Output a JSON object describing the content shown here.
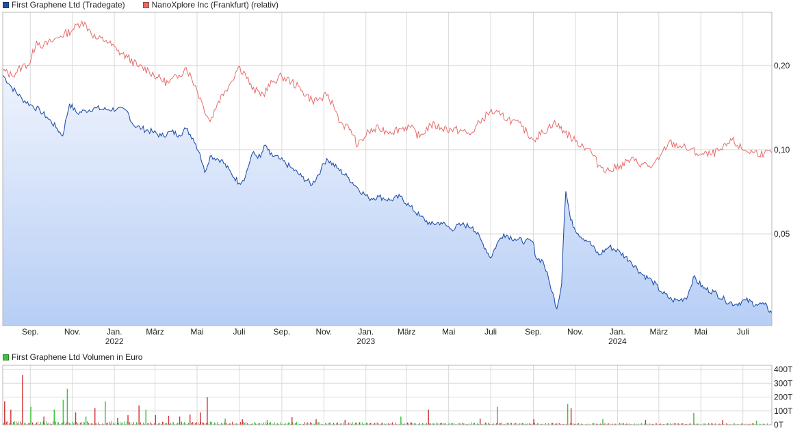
{
  "chart_data": [
    {
      "type": "line",
      "legend_placement": "top-left",
      "grid": true,
      "y_scale": "log",
      "ylim": [
        0.0235,
        0.31
      ],
      "y_ticks": [
        {
          "value": 0.2,
          "label": "0,20"
        },
        {
          "value": 0.1,
          "label": "0,10"
        },
        {
          "value": 0.05,
          "label": "0,05"
        }
      ],
      "x_range": [
        "2021-07-23",
        "2024-08-12"
      ],
      "x_ticks": [
        {
          "date": "2021-09-01",
          "label": "Sep."
        },
        {
          "date": "2021-11-01",
          "label": "Nov."
        },
        {
          "date": "2022-01-01",
          "label": "Jan.",
          "year": "2022"
        },
        {
          "date": "2022-03-01",
          "label": "März"
        },
        {
          "date": "2022-05-01",
          "label": "Mai"
        },
        {
          "date": "2022-07-01",
          "label": "Juli"
        },
        {
          "date": "2022-09-01",
          "label": "Sep."
        },
        {
          "date": "2022-11-01",
          "label": "Nov."
        },
        {
          "date": "2023-01-01",
          "label": "Jan.",
          "year": "2023"
        },
        {
          "date": "2023-03-01",
          "label": "März"
        },
        {
          "date": "2023-05-01",
          "label": "Mai"
        },
        {
          "date": "2023-07-01",
          "label": "Juli"
        },
        {
          "date": "2023-09-01",
          "label": "Sep."
        },
        {
          "date": "2023-11-01",
          "label": "Nov."
        },
        {
          "date": "2024-01-01",
          "label": "Jan.",
          "year": "2024"
        },
        {
          "date": "2024-03-01",
          "label": "März"
        },
        {
          "date": "2024-05-01",
          "label": "Mai"
        },
        {
          "date": "2024-07-01",
          "label": "Juli"
        }
      ],
      "series": [
        {
          "name": "First Graphene Ltd (Tradegate)",
          "color": "#2150a8",
          "fill": "#b7cef5",
          "area": true,
          "points": [
            [
              "2021-07-23",
              0.185
            ],
            [
              "2021-08-05",
              0.167
            ],
            [
              "2021-08-20",
              0.152
            ],
            [
              "2021-09-01",
              0.145
            ],
            [
              "2021-09-15",
              0.138
            ],
            [
              "2021-09-25",
              0.131
            ],
            [
              "2021-10-10",
              0.119
            ],
            [
              "2021-10-18",
              0.112
            ],
            [
              "2021-10-28",
              0.146
            ],
            [
              "2021-11-08",
              0.135
            ],
            [
              "2021-11-20",
              0.138
            ],
            [
              "2021-12-05",
              0.141
            ],
            [
              "2021-12-20",
              0.139
            ],
            [
              "2022-01-05",
              0.14
            ],
            [
              "2022-01-20",
              0.137
            ],
            [
              "2022-01-28",
              0.123
            ],
            [
              "2022-02-10",
              0.119
            ],
            [
              "2022-02-25",
              0.116
            ],
            [
              "2022-03-10",
              0.112
            ],
            [
              "2022-03-25",
              0.116
            ],
            [
              "2022-04-05",
              0.113
            ],
            [
              "2022-04-15",
              0.119
            ],
            [
              "2022-04-25",
              0.11
            ],
            [
              "2022-05-05",
              0.097
            ],
            [
              "2022-05-12",
              0.083
            ],
            [
              "2022-05-20",
              0.095
            ],
            [
              "2022-06-05",
              0.092
            ],
            [
              "2022-06-20",
              0.082
            ],
            [
              "2022-07-01",
              0.076
            ],
            [
              "2022-07-10",
              0.08
            ],
            [
              "2022-07-20",
              0.097
            ],
            [
              "2022-08-01",
              0.094
            ],
            [
              "2022-08-08",
              0.104
            ],
            [
              "2022-08-15",
              0.096
            ],
            [
              "2022-08-28",
              0.093
            ],
            [
              "2022-09-15",
              0.086
            ],
            [
              "2022-09-30",
              0.08
            ],
            [
              "2022-10-15",
              0.075
            ],
            [
              "2022-10-28",
              0.085
            ],
            [
              "2022-11-05",
              0.093
            ],
            [
              "2022-11-20",
              0.086
            ],
            [
              "2022-12-05",
              0.08
            ],
            [
              "2022-12-20",
              0.073
            ],
            [
              "2023-01-05",
              0.067
            ],
            [
              "2023-01-20",
              0.068
            ],
            [
              "2023-02-05",
              0.066
            ],
            [
              "2023-02-20",
              0.068
            ],
            [
              "2023-03-05",
              0.063
            ],
            [
              "2023-03-20",
              0.058
            ],
            [
              "2023-04-05",
              0.054
            ],
            [
              "2023-04-20",
              0.055
            ],
            [
              "2023-05-05",
              0.052
            ],
            [
              "2023-05-20",
              0.054
            ],
            [
              "2023-06-05",
              0.053
            ],
            [
              "2023-06-20",
              0.046
            ],
            [
              "2023-07-01",
              0.041
            ],
            [
              "2023-07-10",
              0.046
            ],
            [
              "2023-07-20",
              0.05
            ],
            [
              "2023-08-05",
              0.048
            ],
            [
              "2023-08-20",
              0.047
            ],
            [
              "2023-08-31",
              0.047
            ],
            [
              "2023-09-05",
              0.041
            ],
            [
              "2023-09-15",
              0.04
            ],
            [
              "2023-09-25",
              0.033
            ],
            [
              "2023-10-05",
              0.027
            ],
            [
              "2023-10-12",
              0.033
            ],
            [
              "2023-10-18",
              0.071
            ],
            [
              "2023-10-25",
              0.056
            ],
            [
              "2023-11-05",
              0.05
            ],
            [
              "2023-11-20",
              0.047
            ],
            [
              "2023-12-05",
              0.042
            ],
            [
              "2023-12-20",
              0.045
            ],
            [
              "2024-01-05",
              0.043
            ],
            [
              "2024-01-20",
              0.04
            ],
            [
              "2024-02-05",
              0.036
            ],
            [
              "2024-02-20",
              0.034
            ],
            [
              "2024-03-05",
              0.031
            ],
            [
              "2024-03-20",
              0.029
            ],
            [
              "2024-04-01",
              0.029
            ],
            [
              "2024-04-12",
              0.03
            ],
            [
              "2024-04-20",
              0.035
            ],
            [
              "2024-05-05",
              0.032
            ],
            [
              "2024-05-20",
              0.031
            ],
            [
              "2024-06-05",
              0.029
            ],
            [
              "2024-06-20",
              0.028
            ],
            [
              "2024-07-05",
              0.029
            ],
            [
              "2024-07-20",
              0.028
            ],
            [
              "2024-08-01",
              0.028
            ],
            [
              "2024-08-12",
              0.026
            ]
          ]
        },
        {
          "name": "NanoXplore Inc (Frankfurt) (relativ)",
          "color": "#e86a6a",
          "area": false,
          "points": [
            [
              "2021-07-23",
              0.192
            ],
            [
              "2021-08-05",
              0.184
            ],
            [
              "2021-08-20",
              0.198
            ],
            [
              "2021-09-01",
              0.205
            ],
            [
              "2021-09-10",
              0.245
            ],
            [
              "2021-09-20",
              0.235
            ],
            [
              "2021-10-01",
              0.243
            ],
            [
              "2021-10-15",
              0.255
            ],
            [
              "2021-11-01",
              0.268
            ],
            [
              "2021-11-15",
              0.288
            ],
            [
              "2021-11-25",
              0.27
            ],
            [
              "2021-12-05",
              0.25
            ],
            [
              "2021-12-20",
              0.246
            ],
            [
              "2022-01-05",
              0.226
            ],
            [
              "2022-01-20",
              0.214
            ],
            [
              "2022-02-05",
              0.198
            ],
            [
              "2022-02-20",
              0.192
            ],
            [
              "2022-03-05",
              0.181
            ],
            [
              "2022-03-20",
              0.173
            ],
            [
              "2022-04-05",
              0.185
            ],
            [
              "2022-04-15",
              0.197
            ],
            [
              "2022-04-28",
              0.17
            ],
            [
              "2022-05-10",
              0.143
            ],
            [
              "2022-05-20",
              0.126
            ],
            [
              "2022-06-01",
              0.149
            ],
            [
              "2022-06-10",
              0.162
            ],
            [
              "2022-06-20",
              0.176
            ],
            [
              "2022-06-30",
              0.198
            ],
            [
              "2022-07-10",
              0.187
            ],
            [
              "2022-07-20",
              0.164
            ],
            [
              "2022-08-05",
              0.158
            ],
            [
              "2022-08-20",
              0.176
            ],
            [
              "2022-09-01",
              0.183
            ],
            [
              "2022-09-15",
              0.175
            ],
            [
              "2022-10-01",
              0.162
            ],
            [
              "2022-10-15",
              0.15
            ],
            [
              "2022-10-28",
              0.152
            ],
            [
              "2022-11-05",
              0.156
            ],
            [
              "2022-11-15",
              0.144
            ],
            [
              "2022-11-25",
              0.125
            ],
            [
              "2022-12-10",
              0.118
            ],
            [
              "2022-12-20",
              0.103
            ],
            [
              "2023-01-05",
              0.116
            ],
            [
              "2023-01-20",
              0.119
            ],
            [
              "2023-02-05",
              0.116
            ],
            [
              "2023-02-20",
              0.119
            ],
            [
              "2023-03-05",
              0.121
            ],
            [
              "2023-03-20",
              0.111
            ],
            [
              "2023-04-05",
              0.123
            ],
            [
              "2023-04-20",
              0.12
            ],
            [
              "2023-05-05",
              0.118
            ],
            [
              "2023-05-20",
              0.117
            ],
            [
              "2023-06-01",
              0.113
            ],
            [
              "2023-06-15",
              0.125
            ],
            [
              "2023-06-30",
              0.137
            ],
            [
              "2023-07-15",
              0.133
            ],
            [
              "2023-08-01",
              0.127
            ],
            [
              "2023-08-15",
              0.121
            ],
            [
              "2023-08-31",
              0.109
            ],
            [
              "2023-09-15",
              0.115
            ],
            [
              "2023-09-30",
              0.125
            ],
            [
              "2023-10-15",
              0.117
            ],
            [
              "2023-11-01",
              0.107
            ],
            [
              "2023-11-20",
              0.101
            ],
            [
              "2023-12-05",
              0.088
            ],
            [
              "2023-12-20",
              0.084
            ],
            [
              "2024-01-05",
              0.088
            ],
            [
              "2024-01-20",
              0.092
            ],
            [
              "2024-02-05",
              0.089
            ],
            [
              "2024-02-20",
              0.087
            ],
            [
              "2024-03-01",
              0.092
            ],
            [
              "2024-03-15",
              0.106
            ],
            [
              "2024-04-01",
              0.103
            ],
            [
              "2024-04-15",
              0.1
            ],
            [
              "2024-05-01",
              0.096
            ],
            [
              "2024-05-15",
              0.096
            ],
            [
              "2024-06-01",
              0.1
            ],
            [
              "2024-06-15",
              0.108
            ],
            [
              "2024-07-01",
              0.1
            ],
            [
              "2024-07-15",
              0.098
            ],
            [
              "2024-08-01",
              0.097
            ],
            [
              "2024-08-12",
              0.097
            ]
          ]
        }
      ]
    },
    {
      "type": "bar",
      "legend_placement": "top-left",
      "grid": true,
      "ylim": [
        0,
        430
      ],
      "y_unit": "T",
      "y_ticks": [
        {
          "value": 0,
          "label": "0T"
        },
        {
          "value": 100,
          "label": "100T"
        },
        {
          "value": 200,
          "label": "200T"
        },
        {
          "value": 300,
          "label": "300T"
        },
        {
          "value": 400,
          "label": "400T"
        }
      ],
      "series": [
        {
          "name": "First Graphene Ltd Volumen in Euro",
          "color": "#3cc43c"
        }
      ],
      "down_color": "#d23b3b",
      "baseline_value": 9,
      "bars": [
        [
          "2021-07-25",
          170,
          "down"
        ],
        [
          "2021-08-03",
          110,
          "down"
        ],
        [
          "2021-08-20",
          360,
          "down"
        ],
        [
          "2021-09-01",
          130,
          "up"
        ],
        [
          "2021-09-20",
          60,
          "down"
        ],
        [
          "2021-10-05",
          110,
          "up"
        ],
        [
          "2021-10-18",
          180,
          "up"
        ],
        [
          "2021-10-24",
          260,
          "up"
        ],
        [
          "2021-11-05",
          90,
          "down"
        ],
        [
          "2021-11-20",
          60,
          "up"
        ],
        [
          "2021-12-03",
          120,
          "down"
        ],
        [
          "2021-12-18",
          170,
          "up"
        ],
        [
          "2022-01-05",
          50,
          "down"
        ],
        [
          "2022-01-20",
          70,
          "down"
        ],
        [
          "2022-02-05",
          140,
          "down"
        ],
        [
          "2022-02-15",
          110,
          "up"
        ],
        [
          "2022-03-01",
          70,
          "down"
        ],
        [
          "2022-03-20",
          65,
          "down"
        ],
        [
          "2022-04-05",
          60,
          "down"
        ],
        [
          "2022-04-20",
          75,
          "down"
        ],
        [
          "2022-05-05",
          90,
          "down"
        ],
        [
          "2022-05-15",
          200,
          "down"
        ],
        [
          "2022-06-10",
          45,
          "up"
        ],
        [
          "2022-07-05",
          40,
          "down"
        ],
        [
          "2022-08-10",
          35,
          "up"
        ],
        [
          "2022-09-15",
          55,
          "down"
        ],
        [
          "2022-10-20",
          40,
          "down"
        ],
        [
          "2022-12-01",
          35,
          "down"
        ],
        [
          "2023-02-20",
          60,
          "up"
        ],
        [
          "2023-04-01",
          110,
          "down"
        ],
        [
          "2023-06-15",
          45,
          "down"
        ],
        [
          "2023-07-10",
          130,
          "up"
        ],
        [
          "2023-09-01",
          40,
          "down"
        ],
        [
          "2023-10-20",
          150,
          "up"
        ],
        [
          "2023-10-25",
          120,
          "down"
        ],
        [
          "2023-12-10",
          40,
          "up"
        ],
        [
          "2024-02-10",
          35,
          "down"
        ],
        [
          "2024-04-20",
          85,
          "up"
        ],
        [
          "2024-06-01",
          35,
          "down"
        ],
        [
          "2024-07-20",
          30,
          "up"
        ]
      ]
    }
  ]
}
